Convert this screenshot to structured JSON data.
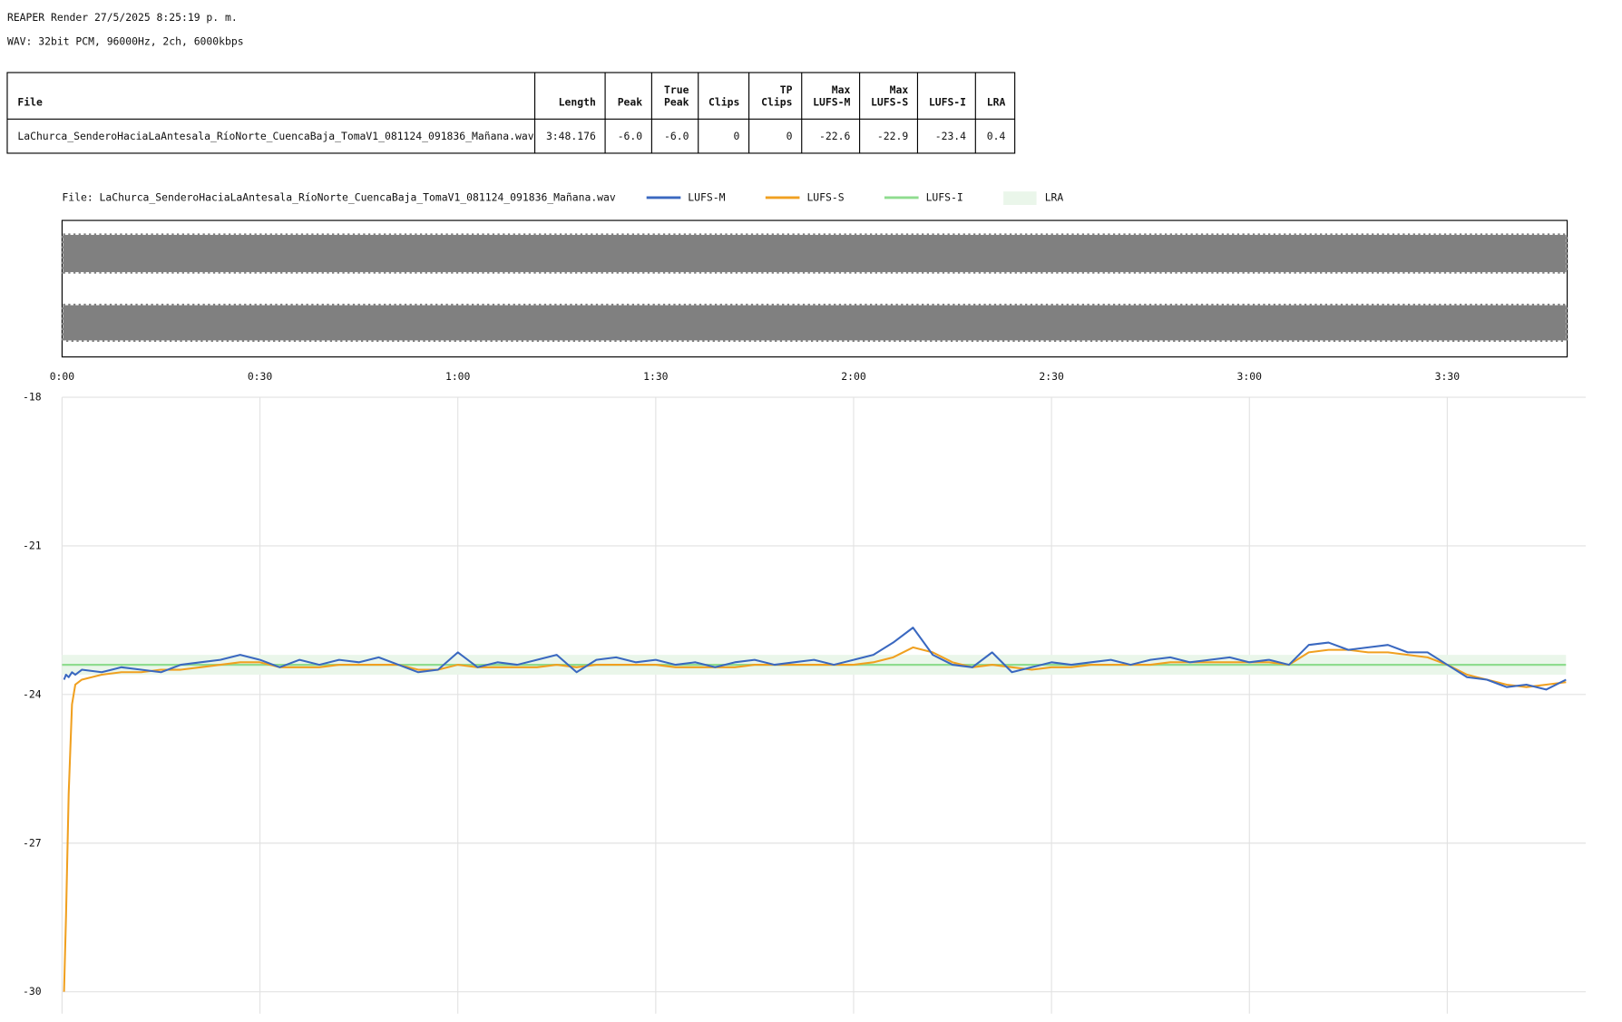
{
  "header": {
    "title": "REAPER Render 27/5/2025 8:25:19 p. m.",
    "format": "WAV: 32bit PCM, 96000Hz, 2ch, 6000kbps"
  },
  "table": {
    "columns": [
      [
        "File"
      ],
      [
        "Length"
      ],
      [
        "Peak"
      ],
      [
        "True",
        "Peak"
      ],
      [
        "Clips"
      ],
      [
        "TP",
        "Clips"
      ],
      [
        "Max",
        "LUFS-M"
      ],
      [
        "Max",
        "LUFS-S"
      ],
      [
        "LUFS-I"
      ],
      [
        "LRA"
      ]
    ],
    "rows": [
      [
        "LaChurca_SenderoHaciaLaAntesala_RíoNorte_CuencaBaja_TomaV1_081124_091836_Mañana.wav",
        "3:48.176",
        "-6.0",
        "-6.0",
        "0",
        "0",
        "-22.6",
        "-22.9",
        "-23.4",
        "0.4"
      ]
    ]
  },
  "chart_data": {
    "type": "line",
    "legend_title": "File: LaChurca_SenderoHaciaLaAntesala_RíoNorte_CuencaBaja_TomaV1_081124_091836_Mañana.wav",
    "x": [
      0.3,
      0.6,
      1,
      1.5,
      2,
      3,
      6,
      9,
      12,
      15,
      18,
      21,
      24,
      27,
      30,
      33,
      36,
      39,
      42,
      45,
      48,
      51,
      54,
      57,
      60,
      63,
      66,
      69,
      72,
      75,
      78,
      81,
      84,
      87,
      90,
      93,
      96,
      99,
      102,
      105,
      108,
      111,
      114,
      117,
      120,
      123,
      126,
      129,
      132,
      135,
      138,
      141,
      144,
      147,
      150,
      153,
      156,
      159,
      162,
      165,
      168,
      171,
      174,
      177,
      180,
      183,
      186,
      189,
      192,
      195,
      198,
      201,
      204,
      207,
      210,
      213,
      216,
      219,
      222,
      225,
      228
    ],
    "series": [
      {
        "name": "LUFS-M",
        "color": "#3a68c0",
        "values": [
          -23.7,
          -23.6,
          -23.65,
          -23.55,
          -23.6,
          -23.5,
          -23.55,
          -23.45,
          -23.5,
          -23.55,
          -23.4,
          -23.35,
          -23.3,
          -23.2,
          -23.3,
          -23.45,
          -23.3,
          -23.4,
          -23.3,
          -23.35,
          -23.25,
          -23.4,
          -23.55,
          -23.5,
          -23.15,
          -23.45,
          -23.35,
          -23.4,
          -23.3,
          -23.2,
          -23.55,
          -23.3,
          -23.25,
          -23.35,
          -23.3,
          -23.4,
          -23.35,
          -23.45,
          -23.35,
          -23.3,
          -23.4,
          -23.35,
          -23.3,
          -23.4,
          -23.3,
          -23.2,
          -22.95,
          -22.65,
          -23.2,
          -23.4,
          -23.45,
          -23.15,
          -23.55,
          -23.45,
          -23.35,
          -23.4,
          -23.35,
          -23.3,
          -23.4,
          -23.3,
          -23.25,
          -23.35,
          -23.3,
          -23.25,
          -23.35,
          -23.3,
          -23.4,
          -23.0,
          -22.95,
          -23.1,
          -23.05,
          -23.0,
          -23.15,
          -23.15,
          -23.4,
          -23.65,
          -23.7,
          -23.85,
          -23.8,
          -23.9,
          -23.7
        ]
      },
      {
        "name": "LUFS-S",
        "color": "#f0a020",
        "values": [
          -30.0,
          -28.5,
          -26.0,
          -24.2,
          -23.8,
          -23.7,
          -23.6,
          -23.55,
          -23.55,
          -23.5,
          -23.5,
          -23.45,
          -23.4,
          -23.35,
          -23.35,
          -23.45,
          -23.45,
          -23.45,
          -23.4,
          -23.4,
          -23.4,
          -23.4,
          -23.5,
          -23.5,
          -23.4,
          -23.45,
          -23.45,
          -23.45,
          -23.45,
          -23.4,
          -23.45,
          -23.4,
          -23.4,
          -23.4,
          -23.4,
          -23.45,
          -23.45,
          -23.45,
          -23.45,
          -23.4,
          -23.4,
          -23.4,
          -23.4,
          -23.4,
          -23.4,
          -23.35,
          -23.25,
          -23.05,
          -23.15,
          -23.35,
          -23.45,
          -23.4,
          -23.45,
          -23.5,
          -23.45,
          -23.45,
          -23.4,
          -23.4,
          -23.4,
          -23.4,
          -23.35,
          -23.35,
          -23.35,
          -23.35,
          -23.35,
          -23.35,
          -23.4,
          -23.15,
          -23.1,
          -23.1,
          -23.15,
          -23.15,
          -23.2,
          -23.25,
          -23.4,
          -23.6,
          -23.7,
          -23.8,
          -23.85,
          -23.8,
          -23.75
        ]
      }
    ],
    "lufs_i": {
      "name": "LUFS-I",
      "color": "#8fdc8f",
      "value": -23.4
    },
    "lra": {
      "name": "LRA",
      "color": "#eaf6ea",
      "range": [
        -23.6,
        -23.2
      ]
    },
    "xlim": [
      0,
      231
    ],
    "ylim": [
      -30.44,
      -18
    ],
    "xticks": [
      {
        "value": 0,
        "label": "0:00"
      },
      {
        "value": 30,
        "label": "0:30"
      },
      {
        "value": 60,
        "label": "1:00"
      },
      {
        "value": 90,
        "label": "1:30"
      },
      {
        "value": 120,
        "label": "2:00"
      },
      {
        "value": 150,
        "label": "2:30"
      },
      {
        "value": 180,
        "label": "3:00"
      },
      {
        "value": 210,
        "label": "3:30"
      }
    ],
    "yticks": [
      -18,
      -21,
      -24,
      -27,
      -30
    ],
    "grid": true
  }
}
